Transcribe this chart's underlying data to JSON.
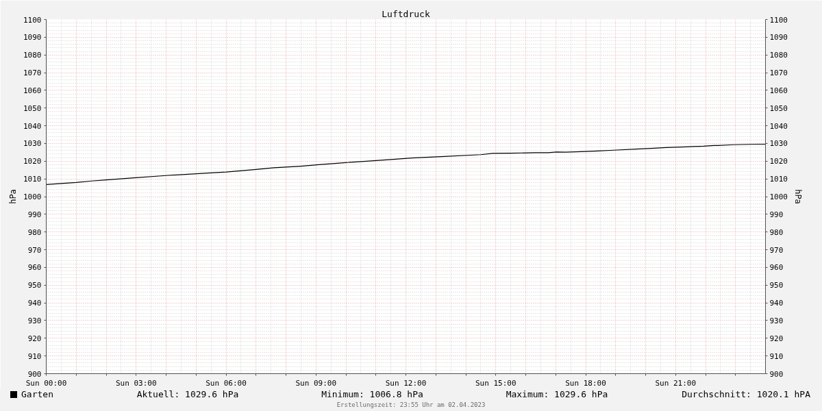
{
  "chart_data": {
    "type": "line",
    "title": "Luftdruck",
    "ylabel": "hPa",
    "y2label": "hPa",
    "x": [
      "2023-04-02T00:00",
      "2023-04-02T00:30",
      "2023-04-02T01:00",
      "2023-04-02T01:30",
      "2023-04-02T02:00",
      "2023-04-02T03:00",
      "2023-04-02T04:00",
      "2023-04-02T05:18",
      "2023-04-02T06:00",
      "2023-04-02T07:00",
      "2023-04-02T07:36",
      "2023-04-02T08:30",
      "2023-04-02T09:06",
      "2023-04-02T10:00",
      "2023-04-02T10:36",
      "2023-04-02T11:30",
      "2023-04-02T12:12",
      "2023-04-02T13:18",
      "2023-04-02T14:30",
      "2023-04-02T14:54",
      "2023-04-02T15:30",
      "2023-04-02T16:18",
      "2023-04-02T16:45",
      "2023-04-02T17:02",
      "2023-04-02T17:20",
      "2023-04-02T18:01",
      "2023-04-02T18:25",
      "2023-04-02T18:56",
      "2023-04-02T19:41",
      "2023-04-02T20:11",
      "2023-04-02T20:41",
      "2023-04-02T21:22",
      "2023-04-02T21:56",
      "2023-04-02T22:17",
      "2023-04-02T22:25",
      "2023-04-02T22:56",
      "2023-04-02T23:46",
      "2023-04-03T00:00"
    ],
    "series": [
      {
        "name": "Garten",
        "color": "#000000",
        "values": [
          1006.8,
          1007.4,
          1008.0,
          1008.8,
          1009.4,
          1010.7,
          1011.9,
          1013.2,
          1013.9,
          1015.3,
          1016.3,
          1017.2,
          1018.0,
          1019.2,
          1019.9,
          1020.9,
          1021.8,
          1022.7,
          1023.7,
          1024.4,
          1024.5,
          1024.8,
          1024.8,
          1025.2,
          1025.1,
          1025.5,
          1025.8,
          1026.2,
          1026.8,
          1027.2,
          1027.7,
          1028.1,
          1028.5,
          1028.9,
          1028.9,
          1029.3,
          1029.6,
          1029.6
        ]
      }
    ],
    "xlim": [
      "2023-04-02T00:00",
      "2023-04-03T00:00"
    ],
    "xticks": [
      {
        "value": "2023-04-02T00:00",
        "label": "Sun 00:00"
      },
      {
        "value": "2023-04-02T01:00",
        "label": null
      },
      {
        "value": "2023-04-02T02:00",
        "label": null
      },
      {
        "value": "2023-04-02T03:00",
        "label": "Sun 03:00"
      },
      {
        "value": "2023-04-02T04:00",
        "label": null
      },
      {
        "value": "2023-04-02T05:00",
        "label": null
      },
      {
        "value": "2023-04-02T06:00",
        "label": "Sun 06:00"
      },
      {
        "value": "2023-04-02T07:00",
        "label": null
      },
      {
        "value": "2023-04-02T08:00",
        "label": null
      },
      {
        "value": "2023-04-02T09:00",
        "label": "Sun 09:00"
      },
      {
        "value": "2023-04-02T10:00",
        "label": null
      },
      {
        "value": "2023-04-02T11:00",
        "label": null
      },
      {
        "value": "2023-04-02T12:00",
        "label": "Sun 12:00"
      },
      {
        "value": "2023-04-02T13:00",
        "label": null
      },
      {
        "value": "2023-04-02T14:00",
        "label": null
      },
      {
        "value": "2023-04-02T15:00",
        "label": "Sun 15:00"
      },
      {
        "value": "2023-04-02T16:00",
        "label": null
      },
      {
        "value": "2023-04-02T17:00",
        "label": null
      },
      {
        "value": "2023-04-02T18:00",
        "label": "Sun 18:00"
      },
      {
        "value": "2023-04-02T19:00",
        "label": null
      },
      {
        "value": "2023-04-02T20:00",
        "label": null
      },
      {
        "value": "2023-04-02T21:00",
        "label": "Sun 21:00"
      },
      {
        "value": "2023-04-02T22:00",
        "label": null
      },
      {
        "value": "2023-04-02T23:00",
        "label": null
      }
    ],
    "ylim": [
      900,
      1100
    ],
    "yticks": [
      900,
      910,
      920,
      930,
      940,
      950,
      960,
      970,
      980,
      990,
      1000,
      1010,
      1020,
      1030,
      1040,
      1050,
      1060,
      1070,
      1080,
      1090,
      1100
    ],
    "y2lim": [
      900,
      1100
    ],
    "y2ticks": [
      900,
      910,
      920,
      930,
      940,
      950,
      960,
      970,
      980,
      990,
      1000,
      1010,
      1020,
      1030,
      1040,
      1050,
      1060,
      1070,
      1080,
      1090,
      1100
    ],
    "grid": true,
    "legend": "bottom left",
    "line_style": "solid",
    "annotations": [
      "Aktuell: 1029.6 hPa",
      "Minimum: 1006.8 hPa",
      "Maximum: 1029.6 hPa",
      "Durchschnitt: 1020.1 hPA",
      "Erstellungszeit: 23:55 Uhr am 02.04.2023"
    ]
  }
}
